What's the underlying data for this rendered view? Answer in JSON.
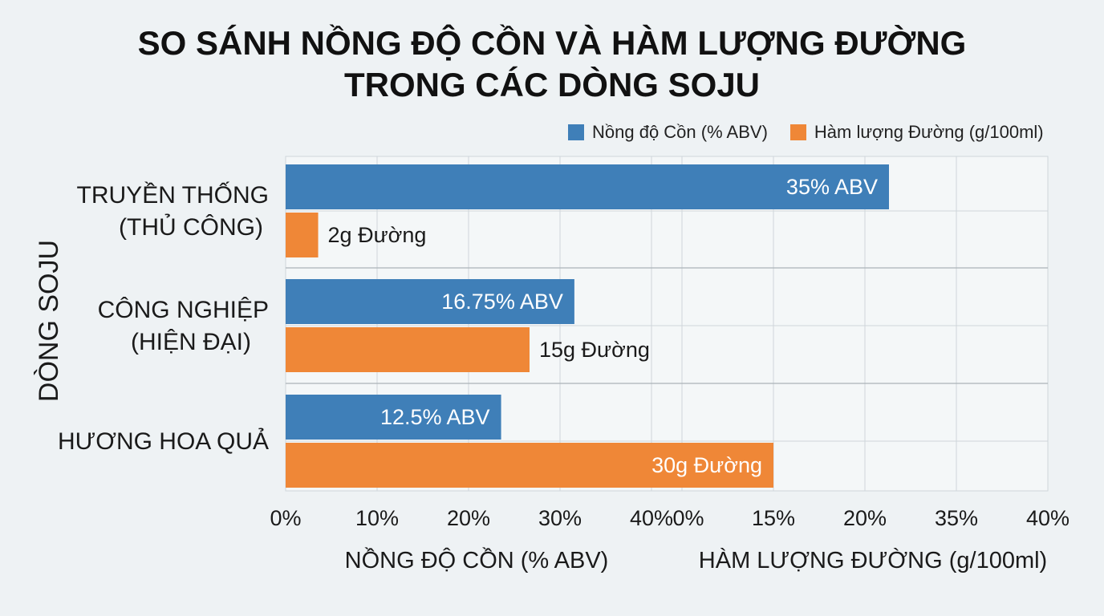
{
  "title_line1": "SO SÁNH NỒNG ĐỘ CỒN VÀ HÀM LƯỢNG ĐƯỜNG",
  "title_line2": "TRONG CÁC DÒNG SOJU",
  "colors": {
    "alcohol": "#3f7fb8",
    "sugar": "#ef8737",
    "grid": "#cfd6da",
    "background": "#eef2f4"
  },
  "chart_data": {
    "type": "bar",
    "orientation": "horizontal",
    "categories": [
      [
        "TRUYỀN THỐNG",
        "(THỦ CÔNG)"
      ],
      [
        "CÔNG NGHIỆP",
        "(HIỆN ĐẠI)"
      ],
      [
        "HƯƠNG HOA QUẢ"
      ]
    ],
    "ylabel": "DÒNG SOJU",
    "series": [
      {
        "name": "Nồng độ Cồn (% ABV)",
        "values": [
          35,
          16.75,
          12.5
        ],
        "data_labels": [
          "35% ABV",
          "16.75% ABV",
          "12.5% ABV"
        ],
        "label_inside": [
          true,
          true,
          true
        ]
      },
      {
        "name": "Hàm lượng Đường (g/100ml)",
        "values": [
          2,
          15,
          30
        ],
        "data_labels": [
          "2g Đường",
          "15g Đường",
          "30g Đường"
        ],
        "label_inside": [
          false,
          false,
          true
        ]
      }
    ],
    "x_axes": [
      {
        "title": "NỒNG ĐỘ CỒN (% ABV)",
        "tick_labels": [
          "0%",
          "10%",
          "20%",
          "30%",
          "40%"
        ],
        "range": [
          0,
          40
        ]
      },
      {
        "title": "HÀM LƯỢNG ĐƯỜNG (g/100ml)",
        "tick_labels": [
          "0%",
          "15%",
          "20%",
          "35%",
          "40%"
        ],
        "range": [
          0,
          40
        ]
      }
    ],
    "grid": true,
    "legend_position": "top-right"
  }
}
